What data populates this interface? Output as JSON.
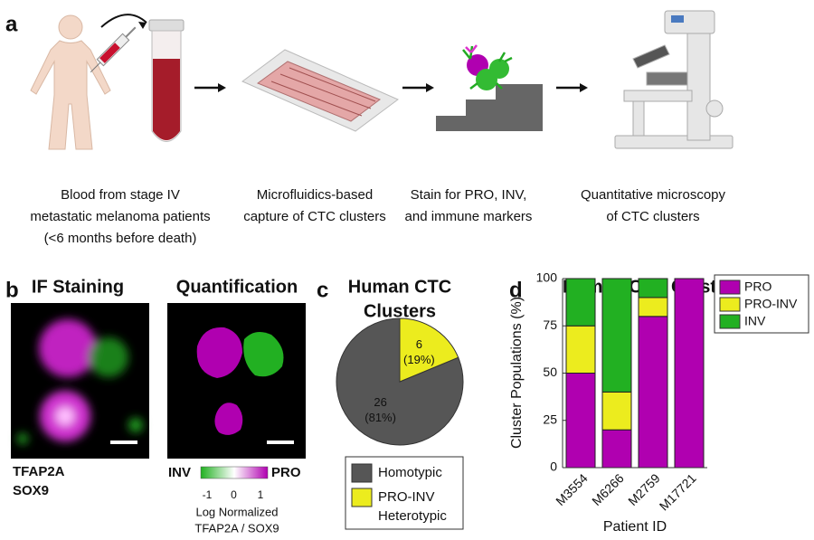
{
  "panel_labels": [
    "a",
    "b",
    "c",
    "d"
  ],
  "workflow": {
    "steps": [
      {
        "caption": [
          "Blood from stage IV",
          "metastatic melanoma patients",
          "(<6 months before death)"
        ]
      },
      {
        "caption": [
          "Microfluidics-based",
          "capture of CTC clusters"
        ]
      },
      {
        "caption": [
          "Stain for PRO, INV,",
          "and immune markers"
        ]
      },
      {
        "caption": [
          "Quantitative microscopy",
          "of CTC clusters"
        ]
      }
    ]
  },
  "staining": {
    "titles": [
      "IF Staining",
      "Quantification"
    ],
    "markers": [
      {
        "name": "TFAP2A",
        "color": "#c020c0"
      },
      {
        "name": "SOX9",
        "color": "#20a020"
      }
    ],
    "colorbar": {
      "low": "INV",
      "high": "PRO",
      "ticks": [
        -1,
        0,
        1
      ],
      "label": [
        "Log Normalized",
        "TFAP2A / SOX9"
      ]
    }
  },
  "chart_data": [
    {
      "type": "pie",
      "title": [
        "Human CTC",
        "Clusters"
      ],
      "categories": [
        [
          "Homotypic"
        ],
        [
          "PRO-INV",
          "Heterotypic"
        ]
      ],
      "values": [
        26,
        6
      ],
      "value_labels": [
        [
          "26",
          "(81%)"
        ],
        [
          "6",
          "(19%)"
        ]
      ],
      "colors": [
        "#565656",
        "#ecec1e"
      ]
    },
    {
      "type": "bar",
      "stacked": true,
      "title": "Human CTC Clusters",
      "x_label": "Patient ID",
      "y_label": "Cluster Populations (%)",
      "categories": [
        "M3554",
        "M6266",
        "M2759",
        "M17721"
      ],
      "series": [
        {
          "name": "PRO",
          "color": "#b000b0",
          "values": [
            50,
            20,
            80,
            100
          ]
        },
        {
          "name": "PRO-INV",
          "color": "#ecec1e",
          "values": [
            25,
            20,
            10,
            0
          ]
        },
        {
          "name": "INV",
          "color": "#22b022",
          "values": [
            25,
            60,
            10,
            0
          ]
        }
      ],
      "ylim": [
        0,
        100
      ],
      "yticks": [
        0,
        25,
        50,
        75,
        100
      ],
      "legend": "outside-right"
    }
  ]
}
